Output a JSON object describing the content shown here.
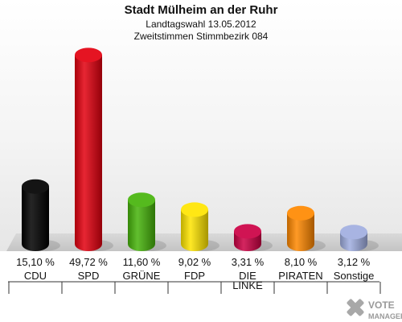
{
  "chart_data": {
    "type": "bar",
    "title": "Stadt Mülheim an der Ruhr",
    "subtitle": [
      "Landtagswahl 13.05.2012",
      "Zweitstimmen Stimmbezirk 084"
    ],
    "categories": [
      "CDU",
      "SPD",
      "GRÜNE",
      "FDP",
      "DIE LINKE",
      "PIRATEN",
      "Sonstige"
    ],
    "values": [
      15.1,
      49.72,
      11.6,
      9.02,
      3.31,
      8.1,
      3.12
    ],
    "value_labels": [
      "15,10 %",
      "49,72 %",
      "11,60 %",
      "9,02 %",
      "3,31 %",
      "8,10 %",
      "3,12 %"
    ],
    "colors": [
      "#000000",
      "#e3000f",
      "#46b40a",
      "#ffe500",
      "#cc0044",
      "#ff8800",
      "#a0aee0"
    ],
    "ylim": [
      0,
      50
    ],
    "grid": false
  },
  "logo": {
    "line1": "VOTE",
    "line2": "MANAGER"
  }
}
